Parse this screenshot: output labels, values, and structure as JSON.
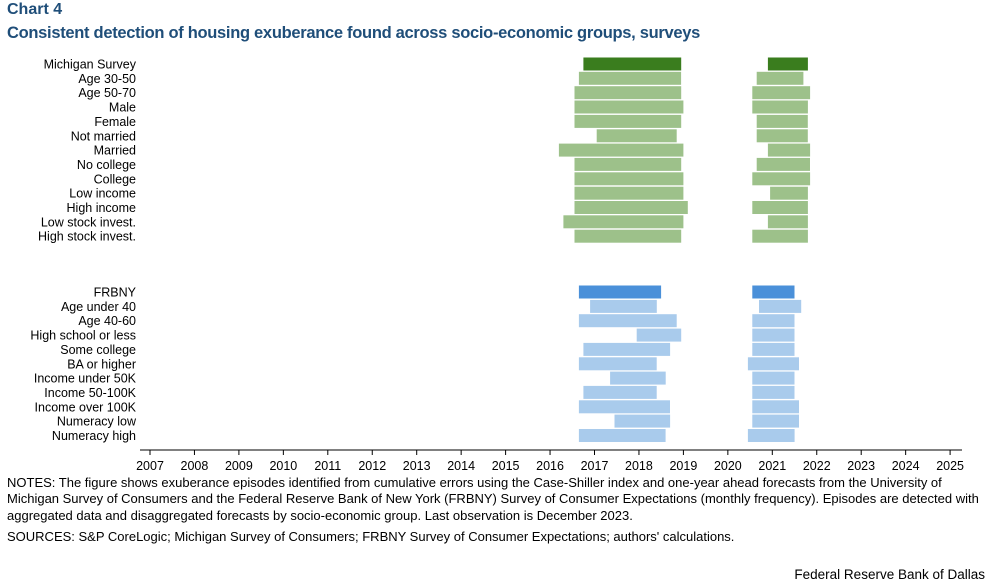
{
  "header": {
    "chart_label": "Chart 4",
    "title": "Consistent detection of housing exuberance found across socio-economic groups, surveys"
  },
  "colors": {
    "michigan_main": "#3a7d1e",
    "michigan_group": "#9dc18a",
    "frbny_main": "#4a90d9",
    "frbny_group": "#a9cbec"
  },
  "chart_data": {
    "type": "timeline",
    "xlabel": "",
    "ylabel": "",
    "xlim": [
      2007,
      2025.6
    ],
    "x_ticks": [
      "2007",
      "2008",
      "2009",
      "2010",
      "2011",
      "2012",
      "2013",
      "2014",
      "2015",
      "2016",
      "2017",
      "2018",
      "2019",
      "2020",
      "2021",
      "2022",
      "2023",
      "2024",
      "2025"
    ],
    "groups": [
      {
        "name": "Michigan Survey",
        "rows": [
          {
            "label": "Michigan Survey",
            "main": true,
            "episodes": [
              [
                2016.75,
                2018.95
              ],
              [
                2020.9,
                2021.8
              ]
            ]
          },
          {
            "label": "Age 30-50",
            "episodes": [
              [
                2016.65,
                2018.95
              ],
              [
                2020.65,
                2021.7
              ]
            ]
          },
          {
            "label": "Age 50-70",
            "episodes": [
              [
                2016.55,
                2018.95
              ],
              [
                2020.55,
                2021.85
              ]
            ]
          },
          {
            "label": "Male",
            "episodes": [
              [
                2016.55,
                2019.0
              ],
              [
                2020.55,
                2021.8
              ]
            ]
          },
          {
            "label": "Female",
            "episodes": [
              [
                2016.55,
                2018.95
              ],
              [
                2020.65,
                2021.8
              ]
            ]
          },
          {
            "label": "Not married",
            "episodes": [
              [
                2017.05,
                2018.85
              ],
              [
                2020.65,
                2021.8
              ]
            ]
          },
          {
            "label": "Married",
            "episodes": [
              [
                2016.2,
                2019.0
              ],
              [
                2020.9,
                2021.85
              ]
            ]
          },
          {
            "label": "No college",
            "episodes": [
              [
                2016.55,
                2018.95
              ],
              [
                2020.65,
                2021.85
              ]
            ]
          },
          {
            "label": "College",
            "episodes": [
              [
                2016.55,
                2019.0
              ],
              [
                2020.55,
                2021.85
              ]
            ]
          },
          {
            "label": "Low income",
            "episodes": [
              [
                2016.55,
                2019.0
              ],
              [
                2020.95,
                2021.8
              ]
            ]
          },
          {
            "label": "High income",
            "episodes": [
              [
                2016.55,
                2019.1
              ],
              [
                2020.55,
                2021.8
              ]
            ]
          },
          {
            "label": "Low stock invest.",
            "episodes": [
              [
                2016.3,
                2019.0
              ],
              [
                2020.9,
                2021.8
              ]
            ]
          },
          {
            "label": "High stock invest.",
            "episodes": [
              [
                2016.55,
                2018.95
              ],
              [
                2020.55,
                2021.8
              ]
            ]
          }
        ]
      },
      {
        "name": "FRBNY",
        "rows": [
          {
            "label": "FRBNY",
            "main": true,
            "episodes": [
              [
                2016.65,
                2018.5
              ],
              [
                2020.55,
                2021.5
              ]
            ]
          },
          {
            "label": "Age under 40",
            "episodes": [
              [
                2016.9,
                2018.4
              ],
              [
                2020.7,
                2021.65
              ]
            ]
          },
          {
            "label": "Age 40-60",
            "episodes": [
              [
                2016.65,
                2018.85
              ],
              [
                2020.55,
                2021.5
              ]
            ]
          },
          {
            "label": "High school or less",
            "episodes": [
              [
                2017.95,
                2018.95
              ],
              [
                2020.55,
                2021.5
              ]
            ]
          },
          {
            "label": "Some college",
            "episodes": [
              [
                2016.75,
                2018.7
              ],
              [
                2020.55,
                2021.5
              ]
            ]
          },
          {
            "label": "BA or higher",
            "episodes": [
              [
                2016.65,
                2018.4
              ],
              [
                2020.45,
                2021.6
              ]
            ]
          },
          {
            "label": "Income under 50K",
            "episodes": [
              [
                2017.35,
                2018.6
              ],
              [
                2020.55,
                2021.5
              ]
            ]
          },
          {
            "label": "Income 50-100K",
            "episodes": [
              [
                2016.75,
                2018.4
              ],
              [
                2020.55,
                2021.5
              ]
            ]
          },
          {
            "label": "Income over 100K",
            "episodes": [
              [
                2016.65,
                2018.7
              ],
              [
                2020.55,
                2021.6
              ]
            ]
          },
          {
            "label": "Numeracy low",
            "episodes": [
              [
                2017.45,
                2018.7
              ],
              [
                2020.55,
                2021.6
              ]
            ]
          },
          {
            "label": "Numeracy high",
            "episodes": [
              [
                2016.65,
                2018.6
              ],
              [
                2020.45,
                2021.5
              ]
            ]
          }
        ]
      }
    ]
  },
  "notes": "NOTES: The figure shows exuberance episodes identified from cumulative errors using the Case-Shiller index and one-year ahead forecasts from the University of Michigan Survey of Consumers and the Federal Reserve Bank of New York (FRBNY) Survey of Consumer Expectations (monthly frequency). Episodes are detected with aggregated data and disaggregated forecasts by socio-economic group. Last observation is December 2023.",
  "sources": "SOURCES: S&P CoreLogic; Michigan Survey of Consumers; FRBNY Survey of Consumer Expectations; authors' calculations.",
  "footer": "Federal Reserve Bank of Dallas"
}
